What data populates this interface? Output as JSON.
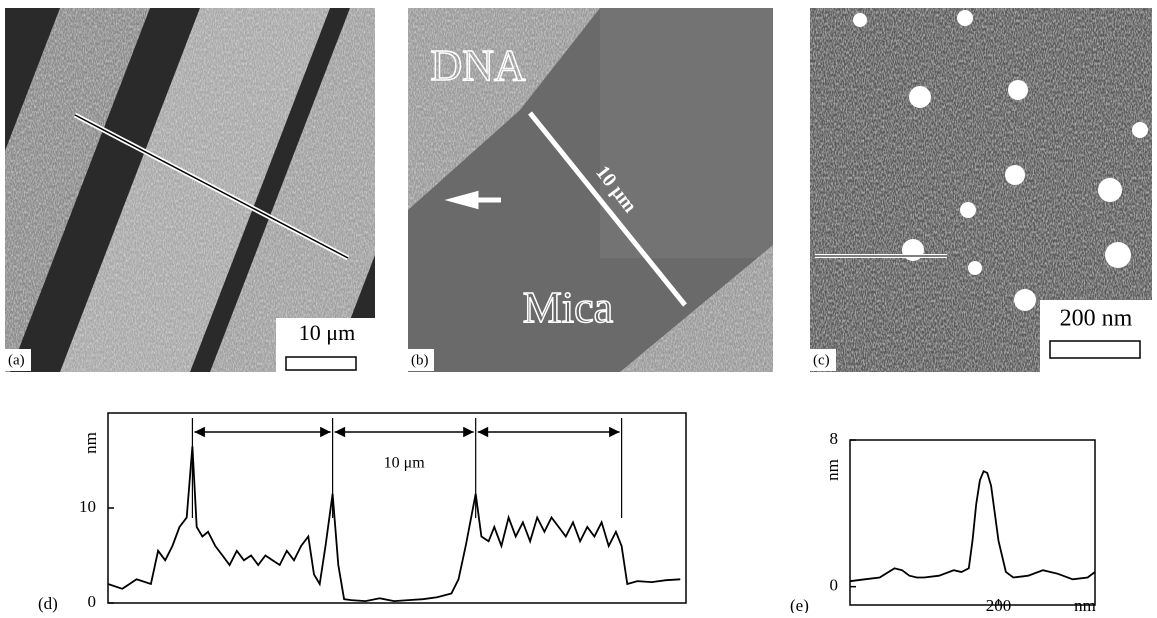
{
  "panels": {
    "a": {
      "label": "(a)",
      "scale": "10 μm"
    },
    "b": {
      "label": "(b)",
      "top_text": "DNA",
      "bottom_text": "Mica",
      "line_text": "10 μm"
    },
    "c": {
      "label": "(c)",
      "scale": "200 nm"
    }
  },
  "chart_data": [
    {
      "type": "line",
      "label": "(d)",
      "y_label": "nm",
      "annotation": "10 μm",
      "x": [
        0,
        1,
        2,
        3,
        3.5,
        4,
        4.5,
        5,
        5.5,
        5.9,
        6.2,
        6.6,
        7,
        7.5,
        8,
        8.5,
        9,
        9.5,
        10,
        10.5,
        11,
        11.5,
        12,
        12.5,
        13,
        13.5,
        14,
        14.4,
        14.8,
        15.2,
        15.7,
        16.1,
        16.5,
        17,
        18,
        19,
        20,
        21,
        22,
        23,
        24,
        24.5,
        25,
        25.7,
        26.1,
        26.6,
        27,
        27.5,
        28,
        28.5,
        29,
        29.5,
        30,
        30.5,
        31,
        31.5,
        32,
        32.5,
        33,
        33.5,
        34,
        34.5,
        35,
        35.5,
        35.9,
        36.3,
        37,
        38,
        39,
        40
      ],
      "values": [
        2,
        1.5,
        2.5,
        2,
        5.5,
        4.5,
        6,
        8,
        9,
        16.5,
        8,
        7,
        7.5,
        6,
        5,
        4,
        5.5,
        4.5,
        5,
        4,
        5,
        4.5,
        4,
        5.5,
        4.5,
        6,
        7,
        3,
        2,
        6,
        11.5,
        4,
        0.4,
        0.3,
        0.2,
        0.5,
        0.2,
        0.3,
        0.4,
        0.6,
        1,
        2.5,
        6,
        11.5,
        7,
        6.5,
        8,
        6,
        9,
        7,
        8.5,
        6.5,
        9,
        7.5,
        9,
        8,
        7,
        8.5,
        6.5,
        8,
        7,
        8.5,
        6,
        7.5,
        6,
        2,
        2.3,
        2.2,
        2.4,
        2.5
      ],
      "guides": [
        5.9,
        15.7,
        25.7,
        35.9
      ],
      "color": "#000000",
      "xlim": [
        0,
        40.4
      ],
      "ylim": [
        0,
        20
      ],
      "yticks": [
        0,
        10
      ]
    },
    {
      "type": "line",
      "label": "(e)",
      "y_label": "nm",
      "x_label": "nm",
      "x": [
        0,
        20,
        40,
        60,
        70,
        80,
        90,
        100,
        120,
        140,
        150,
        160,
        165,
        170,
        175,
        180,
        185,
        190,
        195,
        200,
        210,
        220,
        240,
        260,
        280,
        300,
        320,
        330
      ],
      "values": [
        0.3,
        0.4,
        0.5,
        1,
        0.9,
        0.6,
        0.5,
        0.5,
        0.6,
        0.9,
        0.8,
        1,
        2.5,
        4.5,
        5.8,
        6.3,
        6.2,
        5.5,
        4,
        2.5,
        0.8,
        0.5,
        0.6,
        0.9,
        0.7,
        0.4,
        0.5,
        0.8
      ],
      "color": "#000000",
      "xlim": [
        0,
        330
      ],
      "ylim": [
        -1,
        8
      ],
      "yticks": [
        0,
        8
      ],
      "xticks": [
        200
      ]
    }
  ]
}
